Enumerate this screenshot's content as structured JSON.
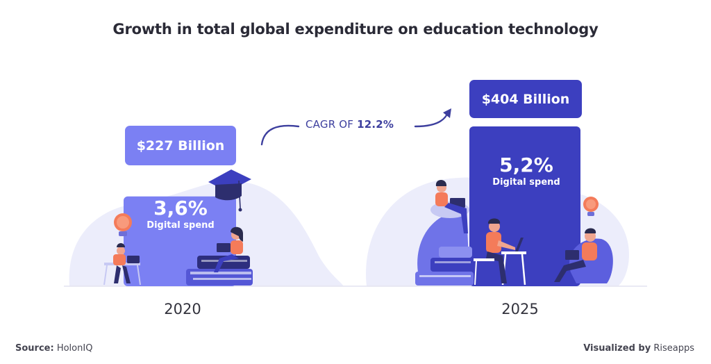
{
  "title": "Growth in total global expenditure on education technology",
  "cagr": {
    "prefix": "CAGR OF",
    "value": "12.2%"
  },
  "source": {
    "label": "Source:",
    "value": "HolonIQ"
  },
  "credit": {
    "label": "Visualized by",
    "value": "Riseapps"
  },
  "colors": {
    "bar_2020": "#7b80f3",
    "bar_2025": "#3c3fbf",
    "blob": "#ecedfb",
    "accent": "#f47b5a"
  },
  "icons": [
    "lightbulb-icon",
    "graduation-cap-icon",
    "arrow-icon"
  ],
  "chart_data": {
    "type": "bar",
    "title": "Growth in total global expenditure on education technology",
    "categories": [
      "2020",
      "2025"
    ],
    "values": [
      227,
      404
    ],
    "value_labels": [
      "$227 Billion",
      "$404 Billion"
    ],
    "digital_share": [
      "3,6%",
      "5,2%"
    ],
    "digital_label": "Digital spend",
    "annotation": "CAGR OF 12.2%"
  }
}
